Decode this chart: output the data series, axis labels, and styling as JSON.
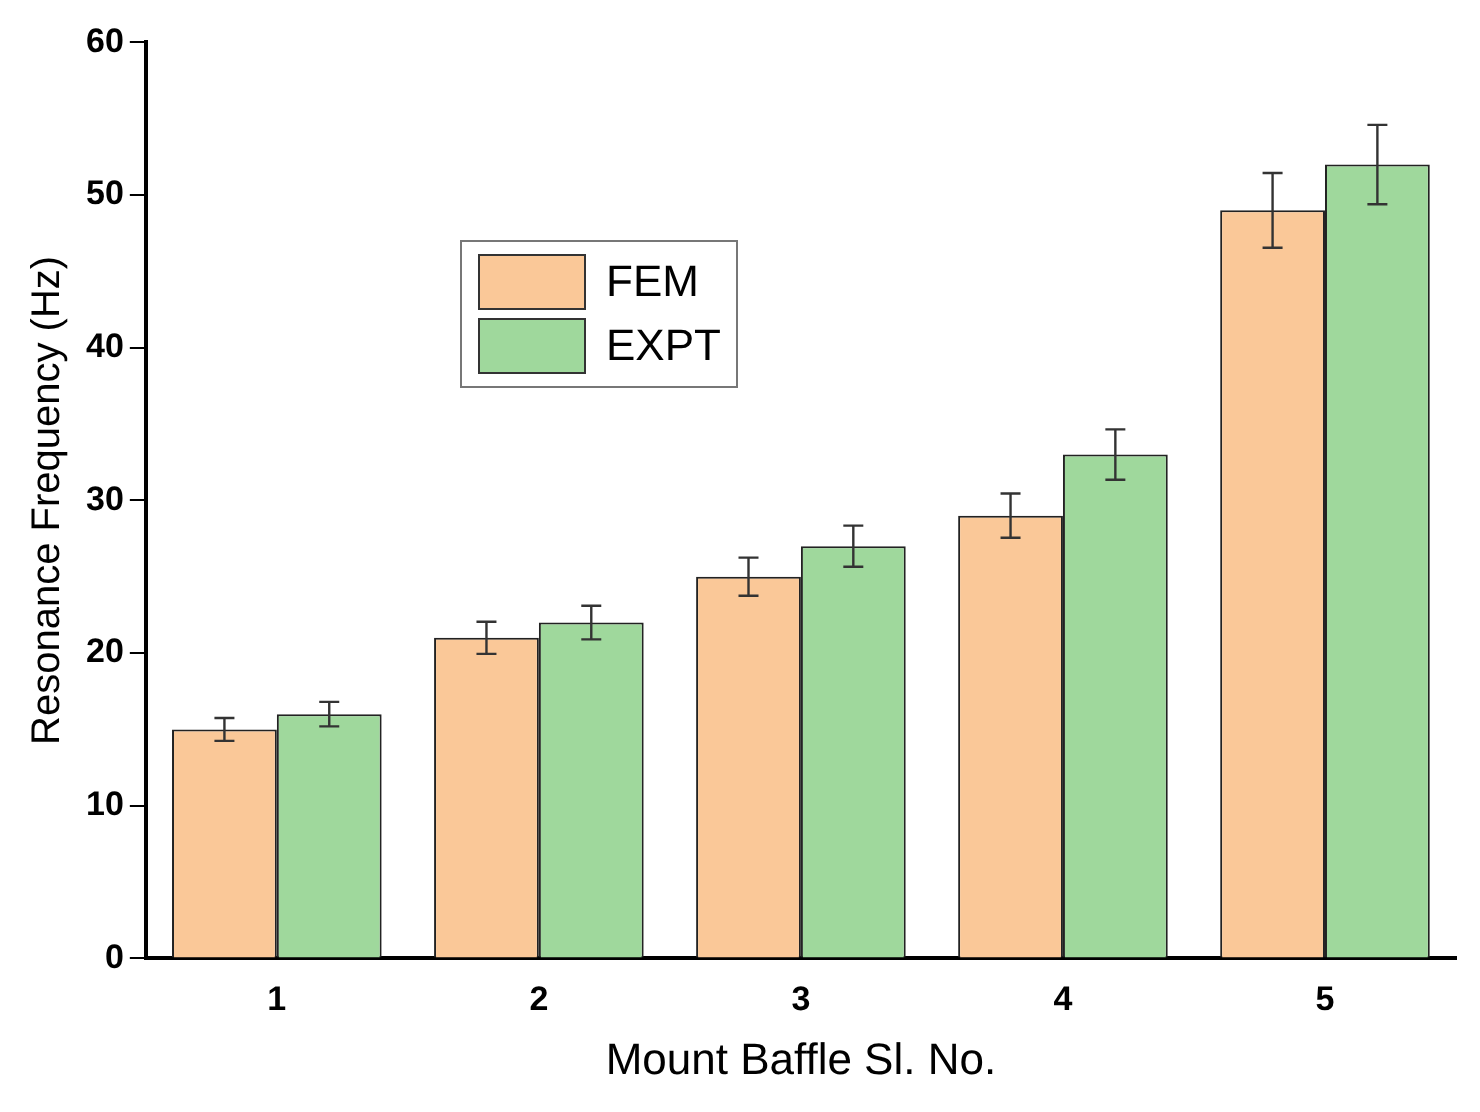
{
  "chart_data": {
    "type": "bar",
    "xlabel": "Mount Baffle Sl. No.",
    "ylabel": "Resonance Frequency (Hz)",
    "categories": [
      "1",
      "2",
      "3",
      "4",
      "5"
    ],
    "series": [
      {
        "name": "FEM",
        "color": "#fac898",
        "values": [
          15,
          21,
          25,
          29,
          49
        ],
        "errors": [
          0.75,
          1.05,
          1.25,
          1.45,
          2.45
        ]
      },
      {
        "name": "EXPT",
        "color": "#9fd89c",
        "values": [
          16,
          22,
          27,
          33,
          52
        ],
        "errors": [
          0.8,
          1.1,
          1.35,
          1.65,
          2.6
        ]
      }
    ],
    "ylim": [
      0,
      60
    ],
    "yticks": [
      0,
      10,
      20,
      30,
      40,
      50,
      60
    ],
    "grid": false,
    "legend": "top left"
  }
}
